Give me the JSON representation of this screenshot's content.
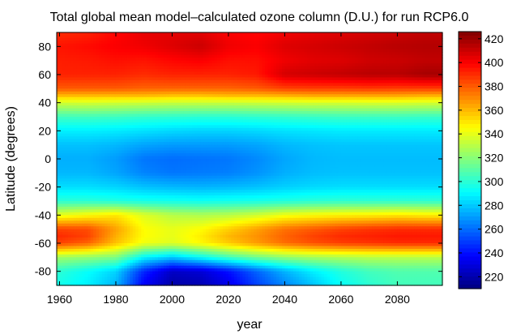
{
  "chart_data": {
    "type": "heatmap",
    "title": "Total global mean model–calculated ozone column (D.U.) for run RCP6.0",
    "xlabel": "year",
    "ylabel": "Latitude (degrees)",
    "xlim": [
      1959,
      2096
    ],
    "ylim": [
      -90,
      90
    ],
    "x_ticks": [
      "1960",
      "1980",
      "2000",
      "2020",
      "2040",
      "2060",
      "2080"
    ],
    "y_ticks": [
      "80",
      "60",
      "40",
      "20",
      "0",
      "-20",
      "-40",
      "-60",
      "-80"
    ],
    "colorbar": {
      "min": 210,
      "max": 426,
      "ticks": [
        "420",
        "400",
        "380",
        "360",
        "340",
        "320",
        "300",
        "280",
        "260",
        "240",
        "220"
      ],
      "colormap": "jet"
    },
    "x": [
      1960,
      1970,
      1980,
      1990,
      2000,
      2010,
      2020,
      2030,
      2040,
      2050,
      2060,
      2070,
      2080,
      2090,
      2095
    ],
    "y": [
      90,
      80,
      70,
      60,
      50,
      45,
      40,
      30,
      20,
      10,
      0,
      -10,
      -20,
      -30,
      -40,
      -50,
      -55,
      -60,
      -70,
      -80,
      -90
    ],
    "z": [
      [
        390,
        392,
        398,
        404,
        405,
        405,
        400,
        398,
        402,
        404,
        406,
        408,
        410,
        412,
        412
      ],
      [
        395,
        397,
        400,
        402,
        406,
        410,
        402,
        400,
        406,
        408,
        410,
        412,
        414,
        415,
        415
      ],
      [
        393,
        394,
        396,
        395,
        398,
        400,
        396,
        396,
        402,
        405,
        406,
        409,
        410,
        412,
        412
      ],
      [
        392,
        392,
        392,
        390,
        392,
        392,
        392,
        394,
        408,
        410,
        412,
        414,
        414,
        418,
        418
      ],
      [
        380,
        380,
        380,
        378,
        378,
        378,
        378,
        380,
        385,
        386,
        386,
        387,
        386,
        386,
        386
      ],
      [
        360,
        360,
        360,
        360,
        358,
        358,
        360,
        360,
        362,
        364,
        364,
        364,
        364,
        362,
        362
      ],
      [
        335,
        336,
        335,
        334,
        333,
        333,
        333,
        334,
        335,
        336,
        336,
        337,
        337,
        336,
        336
      ],
      [
        305,
        305,
        304,
        302,
        301,
        300,
        300,
        301,
        302,
        303,
        304,
        304,
        304,
        303,
        303
      ],
      [
        288,
        288,
        287,
        285,
        283,
        282,
        282,
        283,
        285,
        286,
        287,
        287,
        287,
        287,
        287
      ],
      [
        278,
        278,
        276,
        272,
        270,
        270,
        270,
        272,
        276,
        278,
        279,
        279,
        279,
        279,
        279
      ],
      [
        274,
        274,
        270,
        262,
        260,
        261,
        262,
        266,
        272,
        276,
        277,
        277,
        277,
        277,
        277
      ],
      [
        276,
        276,
        272,
        265,
        262,
        263,
        264,
        268,
        274,
        277,
        278,
        278,
        278,
        278,
        278
      ],
      [
        284,
        284,
        282,
        278,
        276,
        275,
        276,
        278,
        281,
        283,
        284,
        284,
        284,
        284,
        284
      ],
      [
        300,
        300,
        298,
        296,
        295,
        294,
        295,
        296,
        298,
        300,
        301,
        301,
        301,
        301,
        301
      ],
      [
        340,
        345,
        350,
        338,
        330,
        328,
        330,
        335,
        342,
        345,
        347,
        348,
        350,
        348,
        348
      ],
      [
        385,
        383,
        365,
        345,
        340,
        345,
        355,
        365,
        375,
        380,
        385,
        388,
        390,
        390,
        390
      ],
      [
        390,
        385,
        362,
        345,
        340,
        348,
        360,
        368,
        378,
        385,
        390,
        392,
        394,
        394,
        394
      ],
      [
        385,
        378,
        358,
        342,
        338,
        346,
        356,
        366,
        376,
        382,
        386,
        388,
        390,
        390,
        390
      ],
      [
        325,
        322,
        318,
        290,
        280,
        292,
        305,
        315,
        322,
        326,
        328,
        330,
        330,
        330,
        330
      ],
      [
        300,
        292,
        282,
        245,
        225,
        228,
        240,
        258,
        275,
        288,
        298,
        305,
        308,
        308,
        308
      ],
      [
        295,
        288,
        275,
        235,
        218,
        220,
        232,
        250,
        265,
        278,
        292,
        300,
        305,
        305,
        305
      ]
    ]
  }
}
